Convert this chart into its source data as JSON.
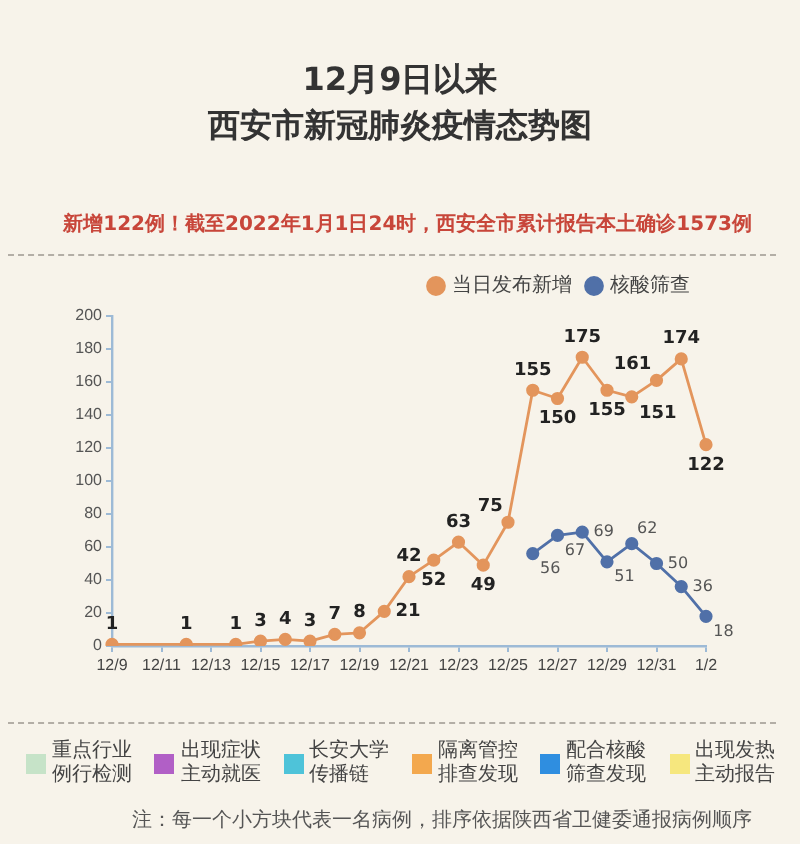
{
  "chart_data": [
    {
      "type": "line",
      "title": "12月9日以来",
      "subtitle": "西安市新冠肺炎疫情态势图",
      "annotations": [
        "新增122例！截至2022年1月1日24时，西安全市累计报告本土确诊1573例"
      ],
      "categories": [
        "12/9",
        null,
        "12/11",
        null,
        "12/13",
        null,
        "12/15",
        null,
        "12/17",
        null,
        "12/19",
        null,
        "12/21",
        null,
        "12/23",
        null,
        "12/25",
        null,
        "12/27",
        null,
        "12/29",
        null,
        "12/31",
        null,
        "1/2"
      ],
      "series": [
        {
          "name": "当日发布新增",
          "color": "#e3955c",
          "values": [
            1,
            null,
            null,
            1,
            null,
            1,
            3,
            4,
            3,
            7,
            8,
            21,
            42,
            52,
            63,
            49,
            75,
            155,
            150,
            175,
            155,
            151,
            161,
            174,
            122
          ]
        },
        {
          "name": "核酸筛查",
          "color": "#5070a8",
          "values": [
            null,
            null,
            null,
            null,
            null,
            null,
            null,
            null,
            null,
            null,
            null,
            null,
            null,
            null,
            null,
            null,
            null,
            56,
            67,
            69,
            51,
            62,
            50,
            36,
            18
          ]
        }
      ],
      "ylim": [
        0,
        200
      ],
      "yticks": [
        0,
        20,
        40,
        60,
        80,
        100,
        120,
        140,
        160,
        180,
        200
      ],
      "grid": false,
      "legend": "top right",
      "marker": "circle",
      "data_labels": true
    },
    {
      "type": "other",
      "categories": [
        "重点行业例行检测",
        "出现症状主动就医",
        "长安大学传播链",
        "隔离管控排查发现",
        "配合核酸筛查发现",
        "出现发热主动报告"
      ],
      "colors": [
        "#c6e3c8",
        "#b15fc6",
        "#4ec3d9",
        "#f3a84e",
        "#2f8ee0",
        "#f6e77e"
      ],
      "annotations": [
        "注：每一个小方块代表一名病例，排序依据陕西省卫健委通报病例顺序"
      ]
    }
  ]
}
